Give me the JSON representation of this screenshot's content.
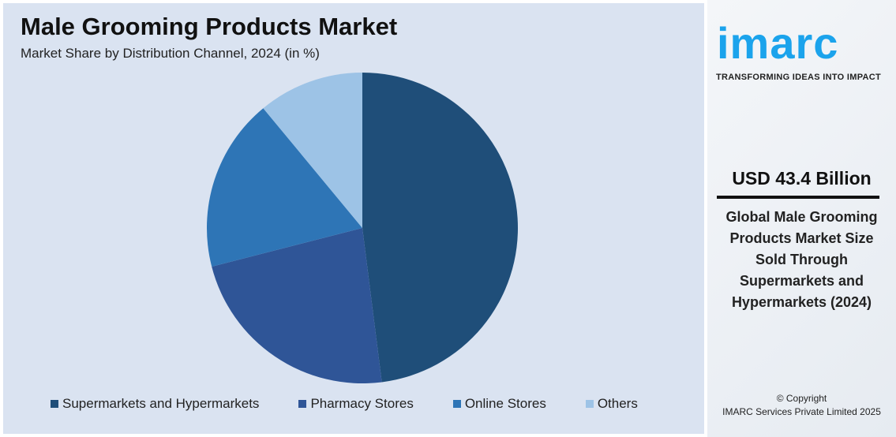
{
  "chart_data": {
    "type": "pie",
    "title": "Male Grooming Products Market",
    "subtitle": "Market Share by Distribution Channel, 2024 (in %)",
    "categories": [
      "Supermarkets and Hypermarkets",
      "Pharmacy Stores",
      "Online Stores",
      "Others"
    ],
    "values": [
      48,
      23,
      18,
      11
    ],
    "colors": [
      "#1f4e79",
      "#2f5597",
      "#2e75b6",
      "#9dc3e6"
    ],
    "legend": "bottom"
  },
  "sidebar": {
    "logo": "imarc",
    "tagline": "TRANSFORMING IDEAS INTO IMPACT",
    "value": "USD 43.4 Billion",
    "description": "Global Male Grooming Products Market Size Sold Through Supermarkets and Hypermarkets (2024)",
    "copyright": "© Copyright",
    "company": "IMARC Services Private Limited 2025"
  }
}
